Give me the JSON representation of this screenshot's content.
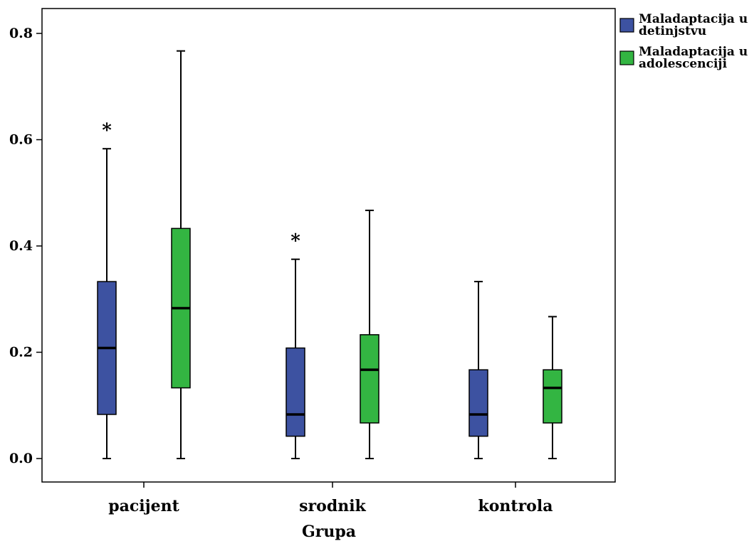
{
  "chart_data": {
    "type": "boxplot",
    "xlabel": "Grupa",
    "ylabel": "",
    "ylim": [
      0,
      0.85
    ],
    "yticks": [
      0.0,
      0.2,
      0.4,
      0.6,
      0.8
    ],
    "ytick_labels": [
      "0.0",
      "0.2",
      "0.4",
      "0.6",
      "0.8"
    ],
    "categories": [
      "pacijent",
      "srodnik",
      "kontrola"
    ],
    "legend_position": "right",
    "series": [
      {
        "name": "Maladaptacija u detinjstvu",
        "legend_lines": [
          "Maladaptacija u",
          "detinjstvu"
        ],
        "color": "#3d52a1",
        "boxes": [
          {
            "min": 0.0,
            "q1": 0.083,
            "median": 0.208,
            "q3": 0.333,
            "max": 0.583,
            "outliers": [
              0.625
            ]
          },
          {
            "min": 0.0,
            "q1": 0.042,
            "median": 0.083,
            "q3": 0.208,
            "max": 0.375,
            "outliers": [
              0.417
            ]
          },
          {
            "min": 0.0,
            "q1": 0.042,
            "median": 0.083,
            "q3": 0.167,
            "max": 0.333,
            "outliers": []
          }
        ]
      },
      {
        "name": "Maladaptacija u adolescenciji",
        "legend_lines": [
          "Maladaptacija u",
          "adolescenciji"
        ],
        "color": "#33b542",
        "boxes": [
          {
            "min": 0.0,
            "q1": 0.133,
            "median": 0.283,
            "q3": 0.433,
            "max": 0.767,
            "outliers": []
          },
          {
            "min": 0.0,
            "q1": 0.067,
            "median": 0.167,
            "q3": 0.233,
            "max": 0.467,
            "outliers": []
          },
          {
            "min": 0.0,
            "q1": 0.067,
            "median": 0.133,
            "q3": 0.167,
            "max": 0.267,
            "outliers": []
          }
        ]
      }
    ],
    "outlier_symbol": "*"
  }
}
